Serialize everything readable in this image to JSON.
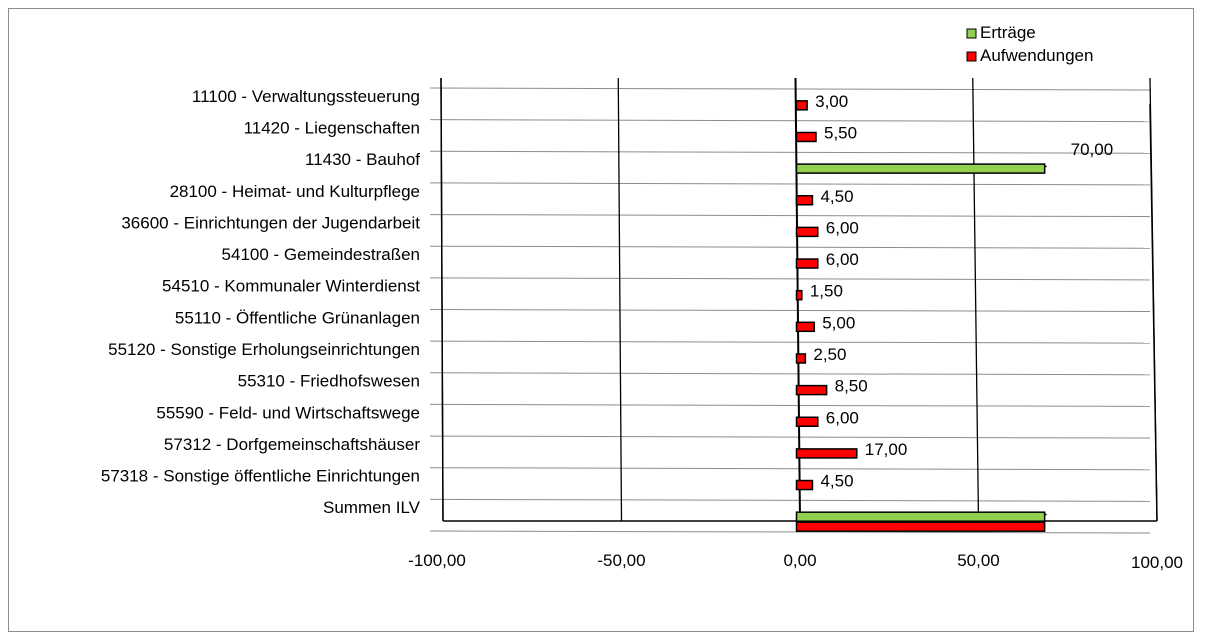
{
  "chart_data": {
    "type": "bar",
    "orientation": "horizontal",
    "categories": [
      "11100 - Verwaltungssteuerung",
      "11420 - Liegenschaften",
      "11430 - Bauhof",
      "28100 - Heimat- und Kulturpflege",
      "36600 - Einrichtungen der Jugendarbeit",
      "54100 - Gemeindestraßen",
      "54510 - Kommunaler Winterdienst",
      "55110 - Öffentliche Grünanlagen",
      "55120 - Sonstige Erholungseinrichtungen",
      "55310 - Friedhofswesen",
      "55590 - Feld- und Wirtschaftswege",
      "57312 - Dorfgemeinschaftshäuser",
      "57318 - Sonstige öffentliche Einrichtungen",
      "Summen ILV"
    ],
    "series": [
      {
        "name": "Erträge",
        "color": "#92d050",
        "values": [
          0,
          0,
          70.0,
          0,
          0,
          0,
          0,
          0,
          0,
          0,
          0,
          0,
          0,
          70.0
        ],
        "labels": [
          "",
          "",
          "70,00",
          "",
          "",
          "",
          "",
          "",
          "",
          "",
          "",
          "",
          "",
          ""
        ]
      },
      {
        "name": "Aufwendungen",
        "color": "#ff0000",
        "values": [
          3.0,
          5.5,
          0,
          4.5,
          6.0,
          6.0,
          1.5,
          5.0,
          2.5,
          8.5,
          6.0,
          17.0,
          4.5,
          70.0
        ],
        "labels": [
          "3,00",
          "5,50",
          "",
          "4,50",
          "6,00",
          "6,00",
          "1,50",
          "5,00",
          "2,50",
          "8,50",
          "6,00",
          "17,00",
          "4,50",
          ""
        ]
      }
    ],
    "xlim": [
      -100,
      100
    ],
    "xticks": [
      -100,
      -50,
      0,
      50,
      100
    ],
    "xtick_labels": [
      "-100,00",
      "-50,00",
      "0,00",
      "50,00",
      "100,00"
    ],
    "grid": true,
    "legend_position": "top-right",
    "title": "",
    "xlabel": "",
    "ylabel": ""
  }
}
